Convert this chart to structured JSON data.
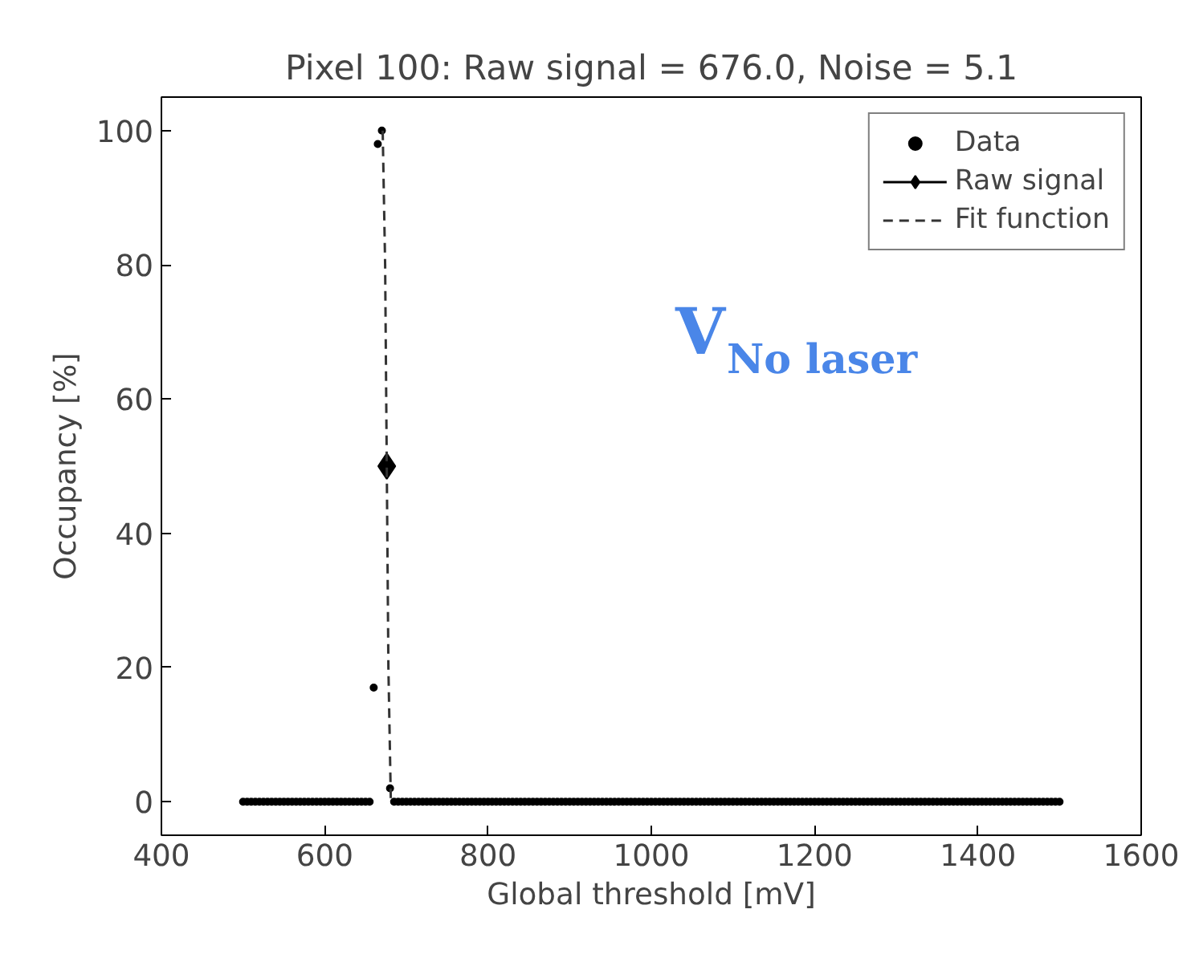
{
  "chart_data": {
    "type": "scatter",
    "title": "Pixel 100: Raw signal = 676.0, Noise = 5.1",
    "xlabel": "Global threshold [mV]",
    "ylabel": "Occupancy [%]",
    "xlim": [
      400,
      1600
    ],
    "xticks": [
      400,
      600,
      800,
      1000,
      1200,
      1400,
      1600
    ],
    "ylim": [
      -5,
      105
    ],
    "yticks": [
      0,
      20,
      40,
      60,
      80,
      100
    ],
    "grid": false,
    "legend": "top right",
    "annotations": [
      "V$_{No laser}$"
    ],
    "series": [
      {
        "name": "Data",
        "marker": "circle",
        "color": "#000000",
        "x": [
          500,
          505,
          510,
          515,
          520,
          525,
          530,
          535,
          540,
          545,
          550,
          555,
          560,
          565,
          570,
          575,
          580,
          585,
          590,
          595,
          600,
          605,
          610,
          615,
          620,
          625,
          630,
          635,
          640,
          645,
          650,
          655,
          660,
          665,
          670,
          680,
          685,
          690,
          695,
          700,
          705,
          710,
          715,
          720,
          725,
          730,
          735,
          740,
          745,
          750,
          755,
          760,
          765,
          770,
          775,
          780,
          785,
          790,
          795,
          800,
          805,
          810,
          815,
          820,
          825,
          830,
          835,
          840,
          845,
          850,
          855,
          860,
          865,
          870,
          875,
          880,
          885,
          890,
          895,
          900,
          905,
          910,
          915,
          920,
          925,
          930,
          935,
          940,
          945,
          950,
          955,
          960,
          965,
          970,
          975,
          980,
          985,
          990,
          995,
          1000,
          1005,
          1010,
          1015,
          1020,
          1025,
          1030,
          1035,
          1040,
          1045,
          1050,
          1055,
          1060,
          1065,
          1070,
          1075,
          1080,
          1085,
          1090,
          1095,
          1100,
          1105,
          1110,
          1115,
          1120,
          1125,
          1130,
          1135,
          1140,
          1145,
          1150,
          1155,
          1160,
          1165,
          1170,
          1175,
          1180,
          1185,
          1190,
          1195,
          1200,
          1205,
          1210,
          1215,
          1220,
          1225,
          1230,
          1235,
          1240,
          1245,
          1250,
          1255,
          1260,
          1265,
          1270,
          1275,
          1280,
          1285,
          1290,
          1295,
          1300,
          1305,
          1310,
          1315,
          1320,
          1325,
          1330,
          1335,
          1340,
          1345,
          1350,
          1355,
          1360,
          1365,
          1370,
          1375,
          1380,
          1385,
          1390,
          1395,
          1400,
          1405,
          1410,
          1415,
          1420,
          1425,
          1430,
          1435,
          1440,
          1445,
          1450,
          1455,
          1460,
          1465,
          1470,
          1475,
          1480,
          1485,
          1490,
          1495,
          1500
        ],
        "values": [
          0,
          0,
          0,
          0,
          0,
          0,
          0,
          0,
          0,
          0,
          0,
          0,
          0,
          0,
          0,
          0,
          0,
          0,
          0,
          0,
          0,
          0,
          0,
          0,
          0,
          0,
          0,
          0,
          0,
          0,
          0,
          0,
          17,
          98,
          100,
          2,
          0,
          0,
          0,
          0,
          0,
          0,
          0,
          0,
          0,
          0,
          0,
          0,
          0,
          0,
          0,
          0,
          0,
          0,
          0,
          0,
          0,
          0,
          0,
          0,
          0,
          0,
          0,
          0,
          0,
          0,
          0,
          0,
          0,
          0,
          0,
          0,
          0,
          0,
          0,
          0,
          0,
          0,
          0,
          0,
          0,
          0,
          0,
          0,
          0,
          0,
          0,
          0,
          0,
          0,
          0,
          0,
          0,
          0,
          0,
          0,
          0,
          0,
          0,
          0,
          0,
          0,
          0,
          0,
          0,
          0,
          0,
          0,
          0,
          0,
          0,
          0,
          0,
          0,
          0,
          0,
          0,
          0,
          0,
          0,
          0,
          0,
          0,
          0,
          0,
          0,
          0,
          0,
          0,
          0,
          0,
          0,
          0,
          0,
          0,
          0,
          0,
          0,
          0,
          0,
          0,
          0,
          0,
          0,
          0,
          0,
          0,
          0,
          0,
          0,
          0,
          0,
          0,
          0,
          0,
          0,
          0,
          0,
          0,
          0,
          0,
          0,
          0,
          0,
          0,
          0,
          0,
          0,
          0,
          0,
          0,
          0,
          0,
          0,
          0,
          0,
          0,
          0,
          0,
          0,
          0,
          0,
          0,
          0,
          0,
          0,
          0,
          0,
          0,
          0,
          0,
          0,
          0,
          0,
          0,
          0,
          0,
          0,
          0,
          0
        ]
      },
      {
        "name": "Raw signal",
        "type": "line",
        "marker": "diamond",
        "line_style": "solid",
        "color": "#000000",
        "x": [
          676
        ],
        "values": [
          50
        ]
      },
      {
        "name": "Fit function",
        "type": "line",
        "marker": "none",
        "line_style": "dashed",
        "color": "#333333",
        "x": [
          671,
          674,
          676,
          678,
          681
        ],
        "values": [
          100,
          80,
          50,
          20,
          0
        ]
      }
    ]
  }
}
